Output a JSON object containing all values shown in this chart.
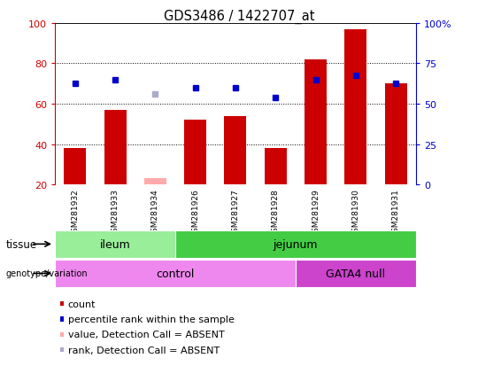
{
  "title": "GDS3486 / 1422707_at",
  "samples": [
    "GSM281932",
    "GSM281933",
    "GSM281934",
    "GSM281926",
    "GSM281927",
    "GSM281928",
    "GSM281929",
    "GSM281930",
    "GSM281931"
  ],
  "bar_values": [
    38,
    57,
    23,
    52,
    54,
    38,
    82,
    97,
    70
  ],
  "bar_absent": [
    false,
    false,
    true,
    false,
    false,
    false,
    false,
    false,
    false
  ],
  "rank_values": [
    70,
    72,
    65,
    68,
    68,
    63,
    72,
    74,
    70
  ],
  "rank_absent": [
    false,
    false,
    true,
    false,
    false,
    false,
    false,
    false,
    false
  ],
  "bar_color": "#cc0000",
  "bar_absent_color": "#ffaaaa",
  "rank_color": "#0000cc",
  "rank_absent_color": "#aaaacc",
  "ylim_left": [
    20,
    100
  ],
  "tissue_groups": [
    {
      "label": "ileum",
      "start": 0,
      "end": 3,
      "color": "#99ee99"
    },
    {
      "label": "jejunum",
      "start": 3,
      "end": 9,
      "color": "#44cc44"
    }
  ],
  "genotype_groups": [
    {
      "label": "control",
      "start": 0,
      "end": 6,
      "color": "#ee88ee"
    },
    {
      "label": "GATA4 null",
      "start": 6,
      "end": 9,
      "color": "#cc44cc"
    }
  ],
  "legend_items": [
    {
      "label": "count",
      "color": "#cc0000"
    },
    {
      "label": "percentile rank within the sample",
      "color": "#0000cc"
    },
    {
      "label": "value, Detection Call = ABSENT",
      "color": "#ffaaaa"
    },
    {
      "label": "rank, Detection Call = ABSENT",
      "color": "#aaaacc"
    }
  ],
  "xtick_bg": "#cccccc",
  "plot_bg": "#ffffff",
  "fig_bg": "#ffffff"
}
